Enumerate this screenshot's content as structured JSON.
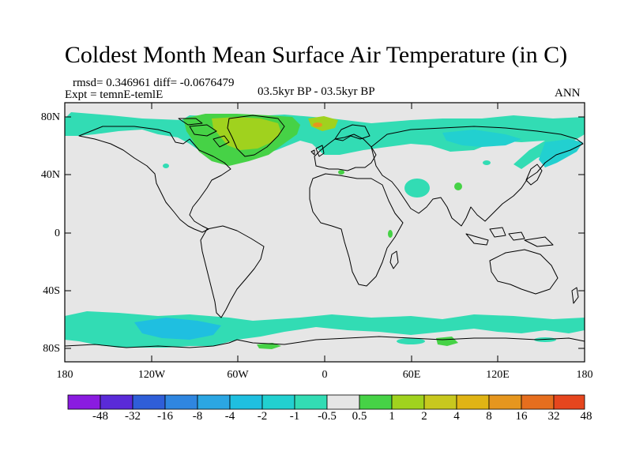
{
  "title": "Coldest Month Mean Surface Air Temperature (in C)",
  "stats": "rmsd= 0.346961  diff= -0.0676479",
  "expt": "Expt = temnE-temlE",
  "period": "03.5kyr BP - 03.5kyr BP",
  "season": "ANN",
  "y_labels": [
    "80N",
    "40N",
    "0",
    "40S",
    "80S"
  ],
  "x_labels": [
    "180",
    "120W",
    "60W",
    "0",
    "60E",
    "120E",
    "180"
  ],
  "colorbar": {
    "labels": [
      "-48",
      "-32",
      "-16",
      "-8",
      "-4",
      "-2",
      "-1",
      "-0.5",
      "0.5",
      "1",
      "2",
      "4",
      "8",
      "16",
      "32",
      "48"
    ],
    "colors": [
      "#8a1be0",
      "#5a2ad8",
      "#2f5ed8",
      "#2f86e0",
      "#2ba6e3",
      "#1fbfe0",
      "#22d0d0",
      "#32dcb4",
      "#e6e6e6",
      "#46d246",
      "#a0d21e",
      "#c8c81e",
      "#e0b414",
      "#e6961e",
      "#e66e1e",
      "#e6461e"
    ]
  },
  "map_colors": {
    "neutral": "#e6e6e6",
    "teal": "#32dcb4",
    "cyan": "#22d0d0",
    "blue": "#1fbfe0",
    "green": "#46d246",
    "yellowgreen": "#a0d21e",
    "orange": "#e6961e"
  }
}
